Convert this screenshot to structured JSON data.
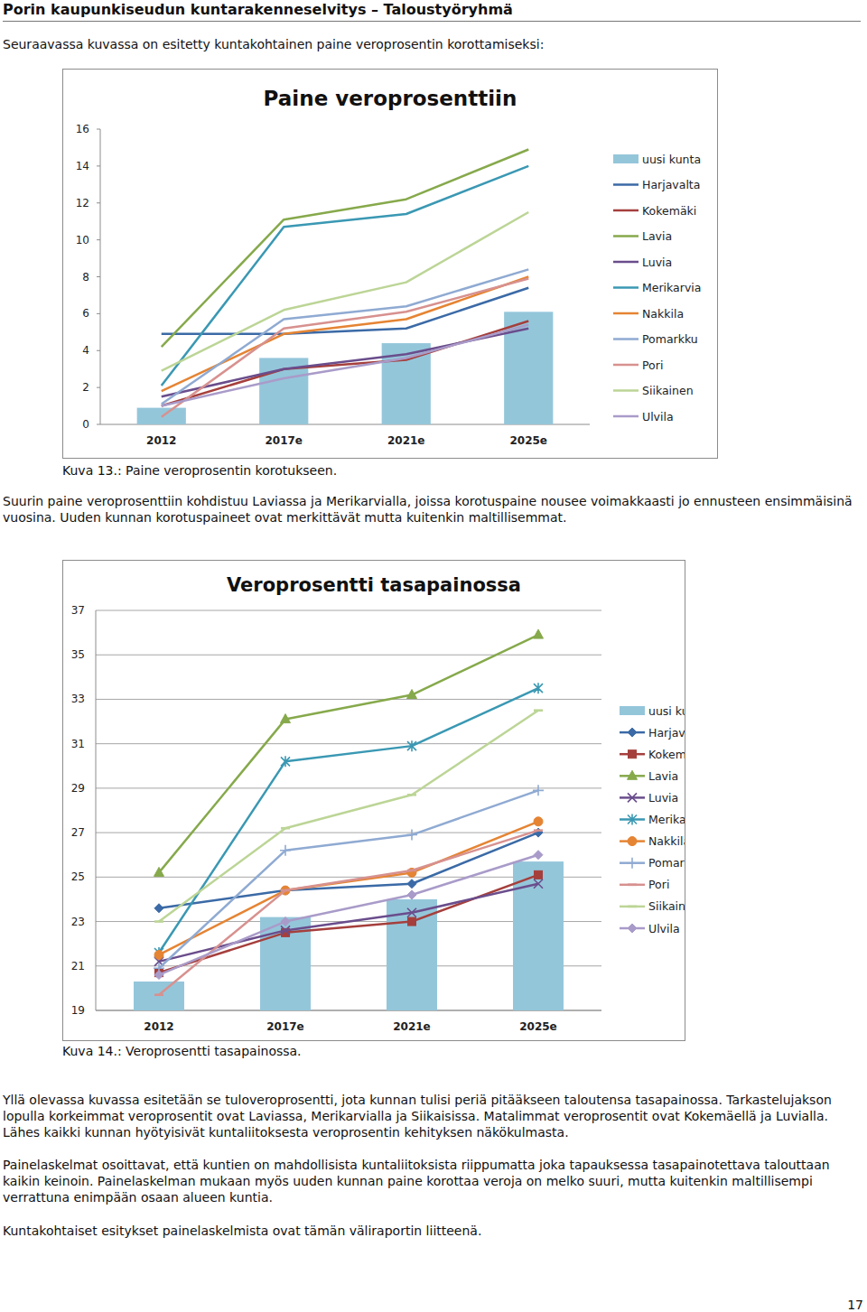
{
  "header": {
    "title": "Porin kaupunkiseudun kuntarakenneselvitys – Taloustyöryhmä"
  },
  "intro": "Seuraavassa kuvassa on esitetty kuntakohtainen paine veroprosentin korottamiseksi:",
  "captions": [
    "Kuva 13.: Paine veroprosentin korotukseen.",
    "Kuva 14.: Veroprosentti tasapainossa."
  ],
  "paragraphs": [
    "Suurin paine veroprosenttiin kohdistuu Laviassa ja Merikarvialla, joissa korotuspaine nousee voimakkaasti jo ennusteen ensimmäisinä vuosina. Uuden kunnan korotuspaineet ovat merkittävät mutta kuitenkin maltillisemmat.",
    "Yllä olevassa kuvassa esitetään se tuloveroprosentti, jota kunnan tulisi periä pitääkseen taloutensa tasapainossa. Tarkastelujakson lopulla korkeimmat veroprosentit ovat Laviassa, Merikarvialla ja Siikaisissa. Matalimmat veroprosentit ovat Kokemäellä ja Luvialla. Lähes kaikki kunnan hyötyisivät kuntaliitoksesta veroprosentin kehityksen näkökulmasta.",
    "Painelaskelmat osoittavat, että kuntien on mahdollisista kuntaliitoksista riippumatta joka tapauksessa tasapainotettava talouttaan kaikin keinoin. Painelaskelman mukaan myös uuden kunnan paine korottaa veroja on melko suuri, mutta kuitenkin maltillisempi verrattuna enimpään osaan alueen kuntia.",
    "Kuntakohtaiset esitykset painelaskelmista ovat tämän väliraportin liitteenä."
  ],
  "page_number": 17,
  "chart_data": [
    {
      "type": "bar",
      "title": "Paine veroprosenttiin",
      "categories": [
        "2012",
        "2017e",
        "2021e",
        "2025e"
      ],
      "ylim": [
        0,
        16
      ],
      "yticks": [
        0,
        2,
        4,
        6,
        8,
        10,
        12,
        14,
        16
      ],
      "grid": false,
      "legend": "right",
      "series": [
        {
          "name": "uusi kunta",
          "type": "bar",
          "color": "#94c6da",
          "values": [
            0.9,
            3.6,
            4.4,
            6.1
          ]
        },
        {
          "name": "Harjavalta",
          "type": "line",
          "color": "#3b6aa6",
          "marker": "none",
          "line_style": "solid",
          "values": [
            4.9,
            4.9,
            5.2,
            7.4
          ]
        },
        {
          "name": "Kokemäki",
          "type": "line",
          "color": "#a53f3c",
          "marker": "none",
          "line_style": "solid",
          "values": [
            1.0,
            3.0,
            3.5,
            5.6
          ]
        },
        {
          "name": "Lavia",
          "type": "line",
          "color": "#86a94b",
          "marker": "none",
          "line_style": "solid",
          "values": [
            4.2,
            11.1,
            12.2,
            14.9
          ]
        },
        {
          "name": "Luvia",
          "type": "line",
          "color": "#6a4d8c",
          "marker": "none",
          "line_style": "solid",
          "values": [
            1.5,
            3.0,
            3.8,
            5.2
          ]
        },
        {
          "name": "Merikarvia",
          "type": "line",
          "color": "#3a98b3",
          "marker": "none",
          "line_style": "solid",
          "values": [
            2.1,
            10.7,
            11.4,
            14.0
          ]
        },
        {
          "name": "Nakkila",
          "type": "line",
          "color": "#e58433",
          "marker": "none",
          "line_style": "solid",
          "values": [
            1.8,
            4.9,
            5.7,
            8.0
          ]
        },
        {
          "name": "Pomarkku",
          "type": "line",
          "color": "#8faad2",
          "marker": "none",
          "line_style": "solid",
          "values": [
            1.1,
            5.7,
            6.4,
            8.4
          ]
        },
        {
          "name": "Pori",
          "type": "line",
          "color": "#d7918f",
          "marker": "none",
          "line_style": "solid",
          "values": [
            0.4,
            5.2,
            6.1,
            7.9
          ]
        },
        {
          "name": "Siikainen",
          "type": "line",
          "color": "#bcd596",
          "marker": "none",
          "line_style": "solid",
          "values": [
            2.9,
            6.2,
            7.7,
            11.5
          ]
        },
        {
          "name": "Ulvila",
          "type": "line",
          "color": "#a99bc9",
          "marker": "none",
          "line_style": "solid",
          "values": [
            1.0,
            2.5,
            3.6,
            5.4
          ]
        }
      ]
    },
    {
      "type": "bar",
      "title": "Veroprosentti tasapainossa",
      "categories": [
        "2012",
        "2017e",
        "2021e",
        "2025e"
      ],
      "ylim": [
        19,
        37
      ],
      "yticks": [
        19,
        21,
        23,
        25,
        27,
        29,
        31,
        33,
        35,
        37
      ],
      "grid": true,
      "legend": "right",
      "series": [
        {
          "name": "uusi kunta",
          "type": "bar",
          "color": "#94c6da",
          "values": [
            20.3,
            23.2,
            24.0,
            25.7
          ]
        },
        {
          "name": "Harjavalta",
          "type": "line",
          "color": "#3b6aa6",
          "marker": "diamond",
          "line_style": "solid",
          "values": [
            23.6,
            24.4,
            24.7,
            27.0
          ]
        },
        {
          "name": "Kokemäki",
          "type": "line",
          "color": "#a53f3c",
          "marker": "square",
          "line_style": "solid",
          "values": [
            20.7,
            22.5,
            23.0,
            25.1
          ]
        },
        {
          "name": "Lavia",
          "type": "line",
          "color": "#86a94b",
          "marker": "triangle",
          "line_style": "solid",
          "values": [
            25.2,
            32.1,
            33.2,
            35.9
          ]
        },
        {
          "name": "Luvia",
          "type": "line",
          "color": "#6a4d8c",
          "marker": "x",
          "line_style": "solid",
          "values": [
            21.2,
            22.6,
            23.4,
            24.7
          ]
        },
        {
          "name": "Merikarvia",
          "type": "line",
          "color": "#3a98b3",
          "marker": "star",
          "line_style": "solid",
          "values": [
            21.6,
            30.2,
            30.9,
            33.5
          ]
        },
        {
          "name": "Nakkila",
          "type": "line",
          "color": "#e58433",
          "marker": "circle",
          "line_style": "solid",
          "values": [
            21.5,
            24.4,
            25.2,
            27.5
          ]
        },
        {
          "name": "Pomarkku",
          "type": "line",
          "color": "#8faad2",
          "marker": "plus",
          "line_style": "solid",
          "values": [
            20.9,
            26.2,
            26.9,
            28.9
          ]
        },
        {
          "name": "Pori",
          "type": "line",
          "color": "#d7918f",
          "marker": "dash",
          "line_style": "solid",
          "values": [
            19.7,
            24.4,
            25.3,
            27.1
          ]
        },
        {
          "name": "Siikainen",
          "type": "line",
          "color": "#bcd596",
          "marker": "dash",
          "line_style": "solid",
          "values": [
            23.0,
            27.2,
            28.7,
            32.5
          ]
        },
        {
          "name": "Ulvila",
          "type": "line",
          "color": "#a99bc9",
          "marker": "diamond",
          "line_style": "solid",
          "values": [
            20.6,
            23.0,
            24.2,
            26.0
          ]
        }
      ]
    }
  ]
}
